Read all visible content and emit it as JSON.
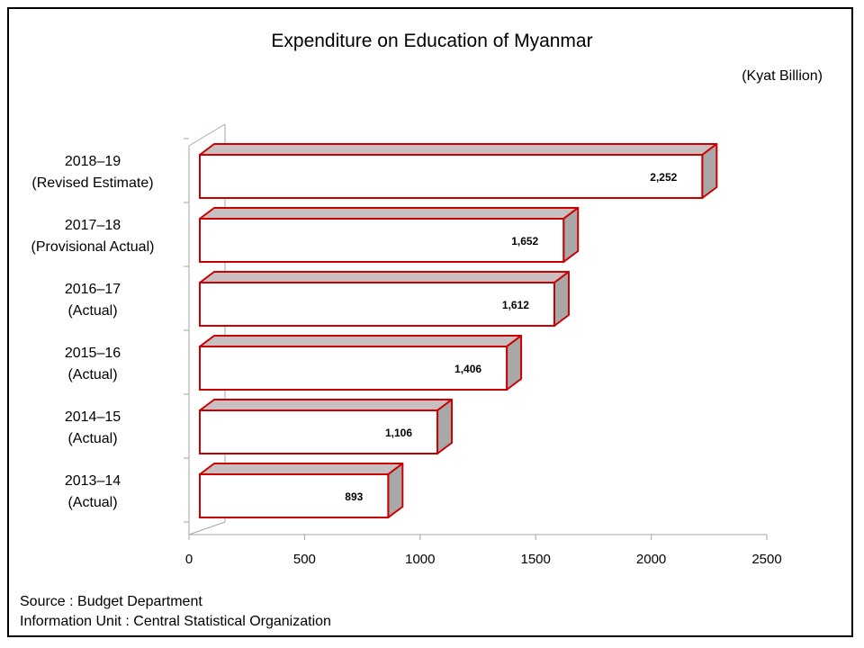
{
  "chart_data": {
    "type": "bar",
    "orientation": "horizontal",
    "style": "3d",
    "title": "Expenditure on Education of Myanmar",
    "unit_label": "(Kyat Billion)",
    "categories": [
      [
        "2018–19",
        "(Revised Estimate)"
      ],
      [
        "2017–18",
        "(Provisional Actual)"
      ],
      [
        "2016–17",
        "(Actual)"
      ],
      [
        "2015–16",
        "(Actual)"
      ],
      [
        "2014–15",
        "(Actual)"
      ],
      [
        "2013–14",
        "(Actual)"
      ]
    ],
    "values": [
      2252,
      1652,
      1612,
      1406,
      1106,
      893
    ],
    "value_labels": [
      "2,252",
      "1,652",
      "1,612",
      "1,406",
      "1,106",
      "893"
    ],
    "xlim": [
      0,
      2500
    ],
    "xticks": [
      "0",
      "500",
      "1000",
      "1500",
      "2000",
      "2500"
    ],
    "xlabel": "",
    "ylabel": "",
    "grid": false,
    "colors": {
      "bar_face": "#ffffff",
      "bar_edge": "#cc0000",
      "bar_top": "#c8bfc0",
      "bar_side": "#a8a8a8",
      "axis": "#a6a6a6"
    }
  },
  "footer": {
    "source": "Source : Budget Department",
    "info": "Information Unit : Central Statistical Organization"
  }
}
